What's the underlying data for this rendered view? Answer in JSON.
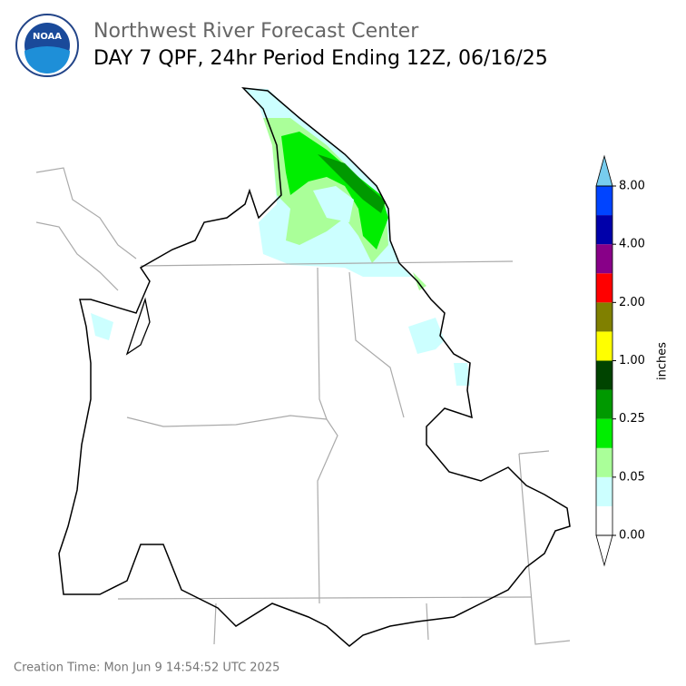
{
  "header": {
    "org": "Northwest River Forecast Center",
    "title": "DAY 7 QPF, 24hr Period Ending 12Z, 06/16/25",
    "logo": "NOAA"
  },
  "colorbar": {
    "label": "inches",
    "colors": [
      "#ffffff",
      "#ccffff",
      "#aaff99",
      "#00ee00",
      "#009900",
      "#004400",
      "#ffff00",
      "#808000",
      "#ff0000",
      "#880088",
      "#0000aa",
      "#0044ff"
    ],
    "under_color": "#ffffff",
    "over_color": "#77ccee",
    "ticks": [
      {
        "value": 0,
        "label": "0.00"
      },
      {
        "value": 0.05,
        "label": "0.05"
      },
      {
        "value": 0.25,
        "label": "0.25"
      },
      {
        "value": 1,
        "label": "1.00"
      },
      {
        "value": 2,
        "label": "2.00"
      },
      {
        "value": 4,
        "label": "4.00"
      },
      {
        "value": 8,
        "label": "8.00"
      }
    ]
  },
  "footer": {
    "creation_time": "Creation Time: Mon Jun 9 14:54:52 UTC 2025"
  }
}
